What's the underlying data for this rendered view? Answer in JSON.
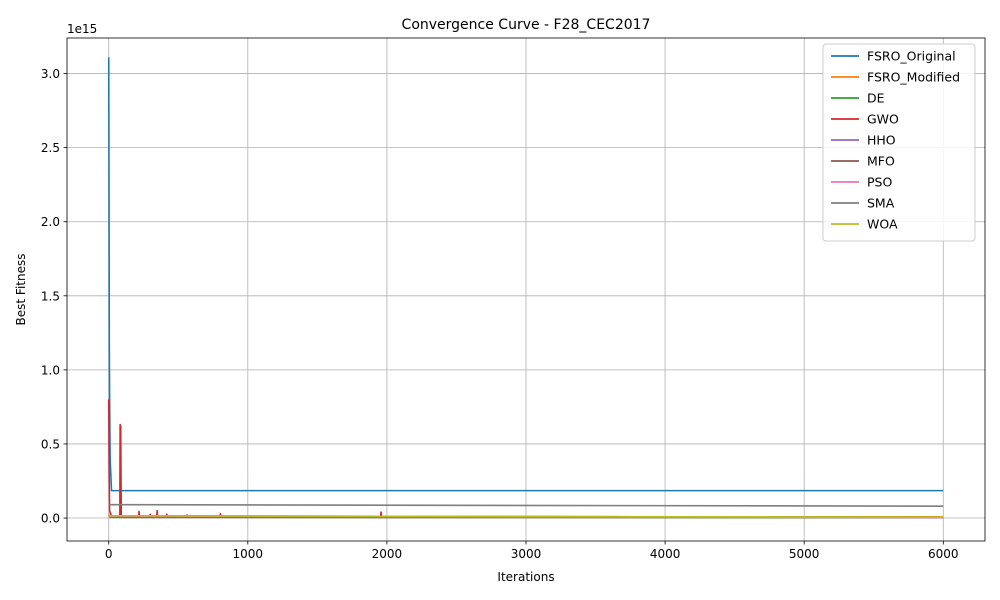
{
  "chart_data": {
    "type": "line",
    "title": "Convergence Curve - F28_CEC2017",
    "xlabel": "Iterations",
    "ylabel": "Best Fitness",
    "y_offset_label": "1e15",
    "y_scale": 1000000000000000.0,
    "xlim": [
      -300,
      6300
    ],
    "ylim": [
      -0.155,
      3.24
    ],
    "xticks": [
      0,
      1000,
      2000,
      3000,
      4000,
      5000,
      6000
    ],
    "xtick_labels": [
      "0",
      "1000",
      "2000",
      "3000",
      "4000",
      "5000",
      "6000"
    ],
    "yticks": [
      0.0,
      0.5,
      1.0,
      1.5,
      2.0,
      2.5,
      3.0
    ],
    "ytick_labels": [
      "0.0",
      "0.5",
      "1.0",
      "1.5",
      "2.0",
      "2.5",
      "3.0"
    ],
    "grid": true,
    "legend_position": "upper right",
    "series": [
      {
        "name": "FSRO_Original",
        "color": "#1f77b4",
        "points": [
          [
            0,
            3.11
          ],
          [
            2,
            2.2
          ],
          [
            4,
            1.2
          ],
          [
            6,
            0.85
          ],
          [
            10,
            0.4
          ],
          [
            20,
            0.185
          ],
          [
            6000,
            0.185
          ]
        ]
      },
      {
        "name": "FSRO_Modified",
        "color": "#ff7f0e",
        "points": [
          [
            0,
            0.01
          ],
          [
            6000,
            0.008
          ]
        ]
      },
      {
        "name": "DE",
        "color": "#2ca02c",
        "points": [
          [
            0,
            0.02
          ],
          [
            10,
            0.005
          ],
          [
            6000,
            0.003
          ]
        ]
      },
      {
        "name": "GWO",
        "color": "#d62728",
        "points": [
          [
            0,
            0.8
          ],
          [
            3,
            0.3
          ],
          [
            6,
            0.05
          ],
          [
            20,
            0.01
          ],
          [
            80,
            0.005
          ],
          [
            82,
            0.63
          ],
          [
            86,
            0.62
          ],
          [
            90,
            0.005
          ],
          [
            215,
            0.005
          ],
          [
            218,
            0.045
          ],
          [
            222,
            0.005
          ],
          [
            295,
            0.005
          ],
          [
            298,
            0.025
          ],
          [
            302,
            0.005
          ],
          [
            345,
            0.005
          ],
          [
            348,
            0.05
          ],
          [
            352,
            0.005
          ],
          [
            415,
            0.005
          ],
          [
            418,
            0.025
          ],
          [
            422,
            0.005
          ],
          [
            560,
            0.005
          ],
          [
            563,
            0.02
          ],
          [
            567,
            0.005
          ],
          [
            800,
            0.005
          ],
          [
            803,
            0.03
          ],
          [
            807,
            0.005
          ],
          [
            1955,
            0.005
          ],
          [
            1958,
            0.04
          ],
          [
            1962,
            0.005
          ],
          [
            6000,
            0.005
          ]
        ]
      },
      {
        "name": "HHO",
        "color": "#9467bd",
        "points": [
          [
            0,
            0.01
          ],
          [
            6000,
            0.004
          ]
        ]
      },
      {
        "name": "MFO",
        "color": "#8c564b",
        "points": [
          [
            0,
            0.015
          ],
          [
            6000,
            0.005
          ]
        ]
      },
      {
        "name": "PSO",
        "color": "#e377c2",
        "points": [
          [
            0,
            0.012
          ],
          [
            6000,
            0.004
          ]
        ]
      },
      {
        "name": "SMA",
        "color": "#7f7f7f",
        "points": [
          [
            0,
            0.09
          ],
          [
            6000,
            0.08
          ]
        ]
      },
      {
        "name": "WOA",
        "color": "#bcbd22",
        "points": [
          [
            0,
            0.03
          ],
          [
            5,
            0.015
          ],
          [
            6000,
            0.006
          ]
        ]
      }
    ]
  }
}
